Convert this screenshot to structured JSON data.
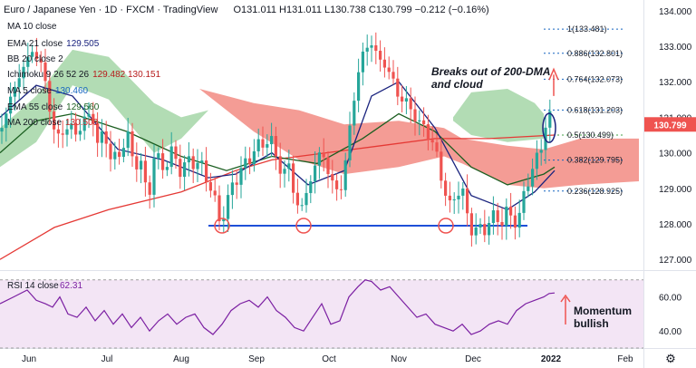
{
  "header": {
    "title": "Euro / Japanese Yen · 1D · FXCM · TradingView",
    "ohlc": "O131.011 H131.011 L130.738 C130.799 −0.212 (−0.16%)"
  },
  "indicators": [
    {
      "label": "MA 10 close",
      "value": ""
    },
    {
      "label": "EMA 21 close",
      "value": "129.505"
    },
    {
      "label": "BB 20 close 2",
      "value": ""
    },
    {
      "label": "Ichimoku 9 26 52 26",
      "value": "129.482 130.151"
    },
    {
      "label": "MA 5 close",
      "value": "130.460"
    },
    {
      "label": "EMA 55 close",
      "value": "129.560"
    },
    {
      "label": "MA 200 close",
      "value": "130.503"
    }
  ],
  "annotations": {
    "breakout": [
      "Breaks out of 200-DMA",
      "and cloud"
    ],
    "momentum": [
      "Momentum",
      "bullish"
    ]
  },
  "price_badge": {
    "value": "130.799",
    "color": "#ef5350"
  },
  "colors": {
    "up": "#26a69a",
    "down": "#ef5350",
    "ma200": "#e53935",
    "ema55": "#1b5e20",
    "ema21": "#1a237e",
    "cloud_bull": "#a5d6a7",
    "cloud_bear": "#f28b82",
    "fib": "#1565c0",
    "support": "#1e4fd8",
    "rsi": "#7b1fa2",
    "rsi_band": "#f3e5f5"
  },
  "chart_data": [
    {
      "type": "candlestick",
      "title": "Euro / Japanese Yen",
      "x_ticks": [
        "Jun",
        "Jul",
        "Aug",
        "Sep",
        "Oct",
        "Nov",
        "Dec",
        "2022",
        "Feb"
      ],
      "y_ticks": [
        127.0,
        128.0,
        129.0,
        130.0,
        131.0,
        132.0,
        133.0,
        134.0
      ],
      "ylim": [
        126.7,
        134.3
      ],
      "close_path": [
        [
          0,
          130.6
        ],
        [
          10,
          131.4
        ],
        [
          20,
          132.1
        ],
        [
          30,
          132.6
        ],
        [
          35,
          132.9
        ],
        [
          45,
          132.5
        ],
        [
          52,
          131.8
        ],
        [
          56,
          131.0
        ],
        [
          62,
          130.4
        ],
        [
          70,
          130.6
        ],
        [
          77,
          130.8
        ],
        [
          83,
          130.5
        ],
        [
          92,
          130.9
        ],
        [
          102,
          131.1
        ],
        [
          108,
          130.2
        ],
        [
          115,
          130.6
        ],
        [
          122,
          129.9
        ],
        [
          130,
          129.8
        ],
        [
          140,
          130.6
        ],
        [
          147,
          129.7
        ],
        [
          155,
          129.8
        ],
        [
          163,
          128.6
        ],
        [
          170,
          129.9
        ],
        [
          180,
          129.6
        ],
        [
          190,
          130.0
        ],
        [
          200,
          129.5
        ],
        [
          210,
          129.8
        ],
        [
          220,
          129.7
        ],
        [
          232,
          129.1
        ],
        [
          242,
          128.1
        ],
        [
          250,
          128.5
        ],
        [
          255,
          129.0
        ],
        [
          265,
          129.5
        ],
        [
          275,
          129.8
        ],
        [
          282,
          130.2
        ],
        [
          290,
          130.2
        ],
        [
          298,
          130.5
        ],
        [
          305,
          129.8
        ],
        [
          312,
          129.4
        ],
        [
          318,
          129.7
        ],
        [
          325,
          128.8
        ],
        [
          332,
          128.3
        ],
        [
          340,
          129.1
        ],
        [
          348,
          129.6
        ],
        [
          355,
          130.2
        ],
        [
          362,
          129.4
        ],
        [
          370,
          129.0
        ],
        [
          378,
          129.0
        ],
        [
          384,
          130.4
        ],
        [
          390,
          131.4
        ],
        [
          397,
          132.5
        ],
        [
          402,
          132.9
        ],
        [
          410,
          133.1
        ],
        [
          418,
          132.6
        ],
        [
          425,
          132.5
        ],
        [
          432,
          132.1
        ],
        [
          440,
          131.6
        ],
        [
          448,
          131.4
        ],
        [
          455,
          131.2
        ],
        [
          462,
          130.8
        ],
        [
          470,
          130.7
        ],
        [
          478,
          130.2
        ],
        [
          484,
          129.7
        ],
        [
          490,
          129.0
        ],
        [
          497,
          128.4
        ],
        [
          504,
          129.0
        ],
        [
          510,
          128.9
        ],
        [
          516,
          128.2
        ],
        [
          522,
          127.8
        ],
        [
          528,
          127.8
        ],
        [
          535,
          127.9
        ],
        [
          541,
          128.1
        ],
        [
          548,
          128.2
        ],
        [
          554,
          128.1
        ],
        [
          560,
          128.3
        ],
        [
          566,
          128.2
        ],
        [
          572,
          128.0
        ],
        [
          578,
          128.8
        ],
        [
          584,
          129.4
        ],
        [
          590,
          129.6
        ],
        [
          596,
          130.1
        ],
        [
          602,
          130.8
        ],
        [
          608,
          131.0
        ],
        [
          612,
          130.8
        ]
      ],
      "ma200": [
        [
          0,
          127.0
        ],
        [
          60,
          127.9
        ],
        [
          120,
          128.4
        ],
        [
          200,
          128.9
        ],
        [
          260,
          129.5
        ],
        [
          300,
          129.8
        ],
        [
          360,
          130.0
        ],
        [
          420,
          130.2
        ],
        [
          480,
          130.4
        ],
        [
          540,
          130.4
        ],
        [
          612,
          130.5
        ]
      ],
      "ema55": [
        [
          0,
          130.0
        ],
        [
          40,
          130.9
        ],
        [
          80,
          131.1
        ],
        [
          140,
          130.6
        ],
        [
          200,
          129.9
        ],
        [
          250,
          129.5
        ],
        [
          300,
          129.9
        ],
        [
          350,
          129.7
        ],
        [
          400,
          130.4
        ],
        [
          440,
          131.1
        ],
        [
          480,
          130.6
        ],
        [
          520,
          129.6
        ],
        [
          560,
          129.1
        ],
        [
          600,
          129.4
        ],
        [
          612,
          129.6
        ]
      ],
      "ema21": [
        [
          0,
          131.0
        ],
        [
          40,
          131.9
        ],
        [
          80,
          131.6
        ],
        [
          130,
          130.1
        ],
        [
          180,
          129.8
        ],
        [
          230,
          129.3
        ],
        [
          260,
          129.4
        ],
        [
          300,
          130.0
        ],
        [
          340,
          129.1
        ],
        [
          380,
          129.5
        ],
        [
          410,
          131.6
        ],
        [
          440,
          132.0
        ],
        [
          480,
          130.7
        ],
        [
          520,
          128.8
        ],
        [
          560,
          128.4
        ],
        [
          590,
          128.9
        ],
        [
          612,
          129.5
        ]
      ],
      "cloud_bull": [
        [
          [
            0,
            130.7
          ],
          [
            40,
            131.6
          ],
          [
            80,
            132.9
          ],
          [
            120,
            132.7
          ],
          [
            170,
            131.4
          ],
          [
            200,
            131.0
          ],
          [
            230,
            131.2
          ]
        ],
        [
          [
            230,
            131.2
          ],
          [
            200,
            130.4
          ],
          [
            170,
            130.0
          ],
          [
            120,
            131.5
          ],
          [
            80,
            131.9
          ],
          [
            40,
            130.3
          ],
          [
            0,
            129.6
          ]
        ]
      ],
      "cloud_bear": [
        [
          [
            220,
            131.8
          ],
          [
            280,
            131.4
          ],
          [
            330,
            131.2
          ],
          [
            380,
            130.8
          ],
          [
            440,
            130.9
          ],
          [
            490,
            130.7
          ],
          [
            510,
            130.4
          ],
          [
            560,
            130.2
          ],
          [
            600,
            130.1
          ],
          [
            640,
            130.4
          ],
          [
            705,
            130.4
          ]
        ],
        [
          [
            705,
            129.2
          ],
          [
            640,
            129.1
          ],
          [
            600,
            129.0
          ],
          [
            560,
            129.1
          ],
          [
            510,
            129.7
          ],
          [
            490,
            129.9
          ],
          [
            440,
            129.6
          ],
          [
            380,
            129.4
          ],
          [
            330,
            129.8
          ],
          [
            280,
            130.6
          ],
          [
            220,
            131.8
          ]
        ]
      ],
      "cloud_bull2": [
        [
          [
            500,
            131.0
          ],
          [
            520,
            131.7
          ],
          [
            560,
            131.8
          ],
          [
            590,
            131.4
          ],
          [
            600,
            131.1
          ]
        ],
        [
          [
            600,
            130.4
          ],
          [
            560,
            130.3
          ],
          [
            520,
            130.5
          ],
          [
            500,
            130.9
          ]
        ]
      ],
      "support": {
        "value": 127.95,
        "from": 230,
        "to": 582
      },
      "circles": [
        [
          245,
          128.0
        ],
        [
          335,
          128.0
        ],
        [
          492,
          128.0
        ]
      ],
      "current_ellipse": [
        606,
        130.7
      ],
      "fib_levels": [
        {
          "label": "1(133.481)",
          "value": 133.481
        },
        {
          "label": "0.886(132.801)",
          "value": 132.801
        },
        {
          "label": "0.764(132.073)",
          "value": 132.073
        },
        {
          "label": "0.618(131.203)",
          "value": 131.203
        },
        {
          "label": "0.5(130.499)",
          "value": 130.499
        },
        {
          "label": "0.382(129.795)",
          "value": 129.795
        },
        {
          "label": "0.236(128.925)",
          "value": 128.925
        }
      ]
    },
    {
      "type": "line",
      "title": "RSI 14 close",
      "value": "62.31",
      "y_ticks": [
        40.0,
        60.0
      ],
      "ylim": [
        30,
        72
      ],
      "band": [
        30,
        70
      ],
      "path": [
        [
          0,
          56
        ],
        [
          15,
          60
        ],
        [
          30,
          64
        ],
        [
          40,
          58
        ],
        [
          50,
          56
        ],
        [
          58,
          54
        ],
        [
          66,
          60
        ],
        [
          75,
          50
        ],
        [
          85,
          48
        ],
        [
          95,
          54
        ],
        [
          105,
          46
        ],
        [
          115,
          52
        ],
        [
          125,
          44
        ],
        [
          135,
          50
        ],
        [
          145,
          42
        ],
        [
          155,
          48
        ],
        [
          165,
          40
        ],
        [
          175,
          46
        ],
        [
          185,
          50
        ],
        [
          195,
          44
        ],
        [
          205,
          48
        ],
        [
          215,
          50
        ],
        [
          225,
          42
        ],
        [
          235,
          38
        ],
        [
          245,
          44
        ],
        [
          255,
          52
        ],
        [
          265,
          56
        ],
        [
          275,
          58
        ],
        [
          285,
          54
        ],
        [
          295,
          60
        ],
        [
          305,
          52
        ],
        [
          315,
          48
        ],
        [
          325,
          42
        ],
        [
          335,
          40
        ],
        [
          345,
          48
        ],
        [
          355,
          56
        ],
        [
          365,
          44
        ],
        [
          375,
          46
        ],
        [
          385,
          60
        ],
        [
          395,
          66
        ],
        [
          403,
          70
        ],
        [
          410,
          69
        ],
        [
          420,
          64
        ],
        [
          430,
          66
        ],
        [
          440,
          60
        ],
        [
          450,
          54
        ],
        [
          460,
          48
        ],
        [
          470,
          50
        ],
        [
          480,
          44
        ],
        [
          490,
          42
        ],
        [
          500,
          40
        ],
        [
          510,
          44
        ],
        [
          520,
          38
        ],
        [
          530,
          40
        ],
        [
          540,
          44
        ],
        [
          550,
          46
        ],
        [
          560,
          44
        ],
        [
          570,
          52
        ],
        [
          580,
          56
        ],
        [
          590,
          58
        ],
        [
          600,
          60
        ],
        [
          606,
          62
        ],
        [
          612,
          62.31
        ]
      ]
    }
  ]
}
